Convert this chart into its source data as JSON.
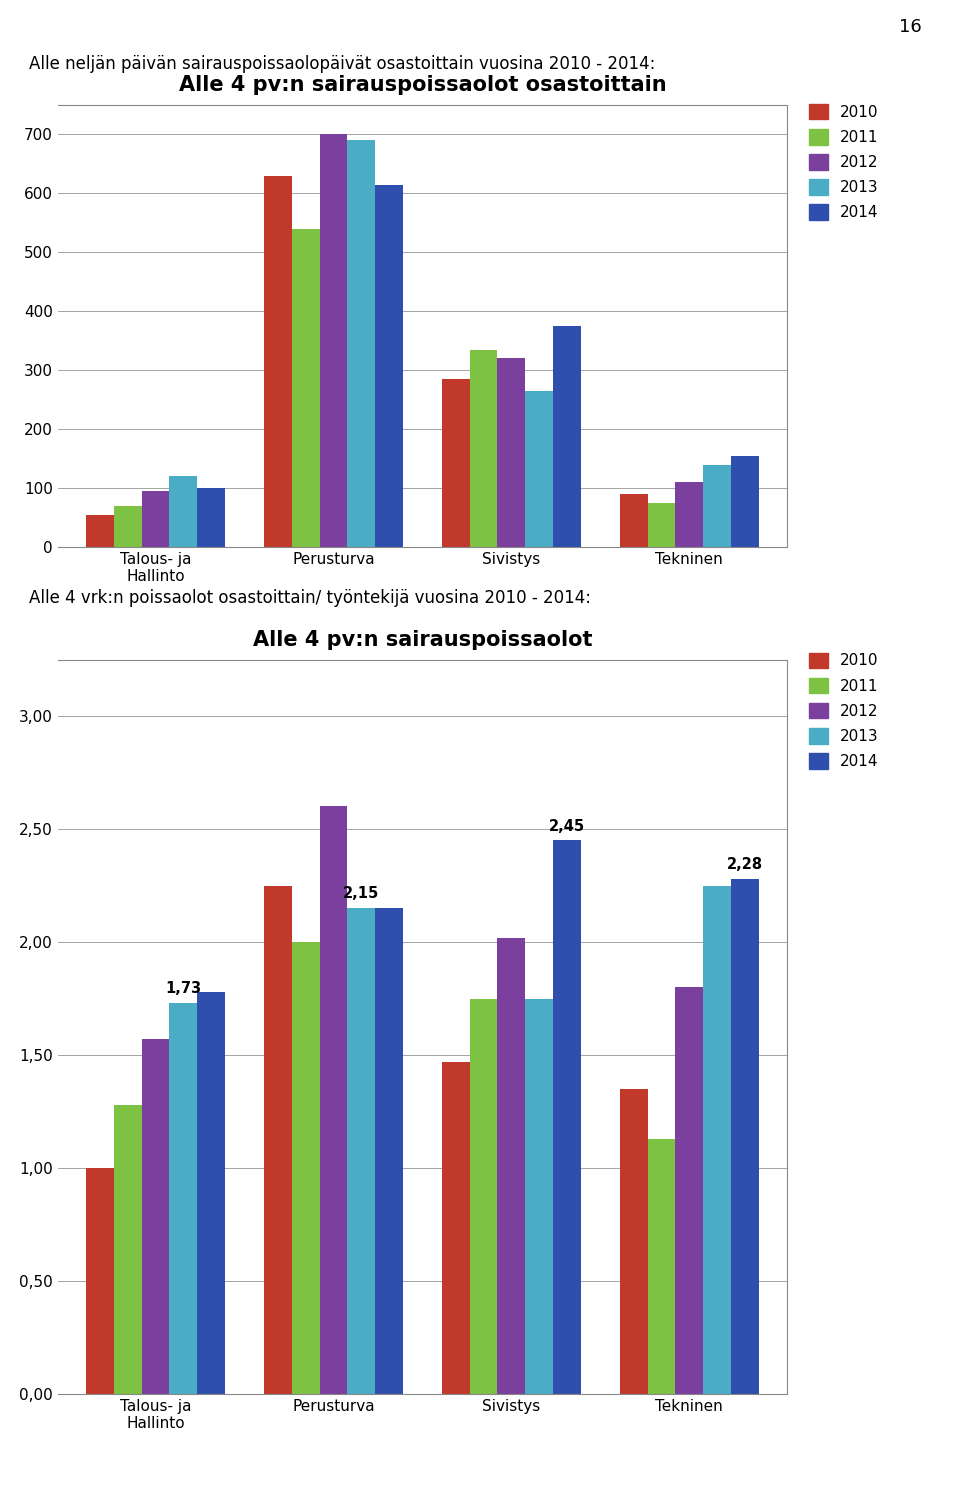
{
  "page_number": "16",
  "text1": "Alle neljän päivän sairauspoissaolopäivät osastoittain vuosina 2010 - 2014:",
  "text2": "Alle 4 vrk:n poissaolot osastoittain/ työntekijä vuosina 2010 - 2014:",
  "chart1": {
    "title": "Alle 4 pv:n sairauspoissaolot osastoittain",
    "categories": [
      "Talous- ja\nHallinto",
      "Perusturva",
      "Sivistys",
      "Tekninen"
    ],
    "years": [
      "2010",
      "2011",
      "2012",
      "2013",
      "2014"
    ],
    "colors": [
      "#C0392B",
      "#7DC242",
      "#7B3F9E",
      "#4BACC6",
      "#2E4FAD"
    ],
    "values": [
      [
        55,
        630,
        285,
        90
      ],
      [
        70,
        540,
        335,
        75
      ],
      [
        95,
        700,
        320,
        110
      ],
      [
        120,
        690,
        265,
        140
      ],
      [
        100,
        615,
        375,
        155
      ]
    ],
    "ylim": [
      0,
      750
    ],
    "yticks": [
      0,
      100,
      200,
      300,
      400,
      500,
      600,
      700
    ]
  },
  "chart2": {
    "title": "Alle 4 pv:n sairauspoissaolot",
    "categories": [
      "Talous- ja\nHallinto",
      "Perusturva",
      "Sivistys",
      "Tekninen"
    ],
    "years": [
      "2010",
      "2011",
      "2012",
      "2013",
      "2014"
    ],
    "colors": [
      "#C0392B",
      "#7DC242",
      "#7B3F9E",
      "#4BACC6",
      "#2E4FAD"
    ],
    "values": [
      [
        1.0,
        2.25,
        1.47,
        1.35
      ],
      [
        1.28,
        2.0,
        1.75,
        1.13
      ],
      [
        1.57,
        2.6,
        2.02,
        1.8
      ],
      [
        1.73,
        2.15,
        1.75,
        2.25
      ],
      [
        1.78,
        2.15,
        2.45,
        2.28
      ]
    ],
    "ylim": [
      0,
      3.25
    ],
    "yticks": [
      0.0,
      0.5,
      1.0,
      1.5,
      2.0,
      2.5,
      3.0
    ],
    "annotations": [
      {
        "cat_idx": 0,
        "year_idx": 3,
        "value": 1.73,
        "label": "1,73"
      },
      {
        "cat_idx": 1,
        "year_idx": 3,
        "value": 2.15,
        "label": "2,15"
      },
      {
        "cat_idx": 2,
        "year_idx": 4,
        "value": 2.45,
        "label": "2,45"
      },
      {
        "cat_idx": 3,
        "year_idx": 4,
        "value": 2.28,
        "label": "2,28"
      }
    ]
  }
}
